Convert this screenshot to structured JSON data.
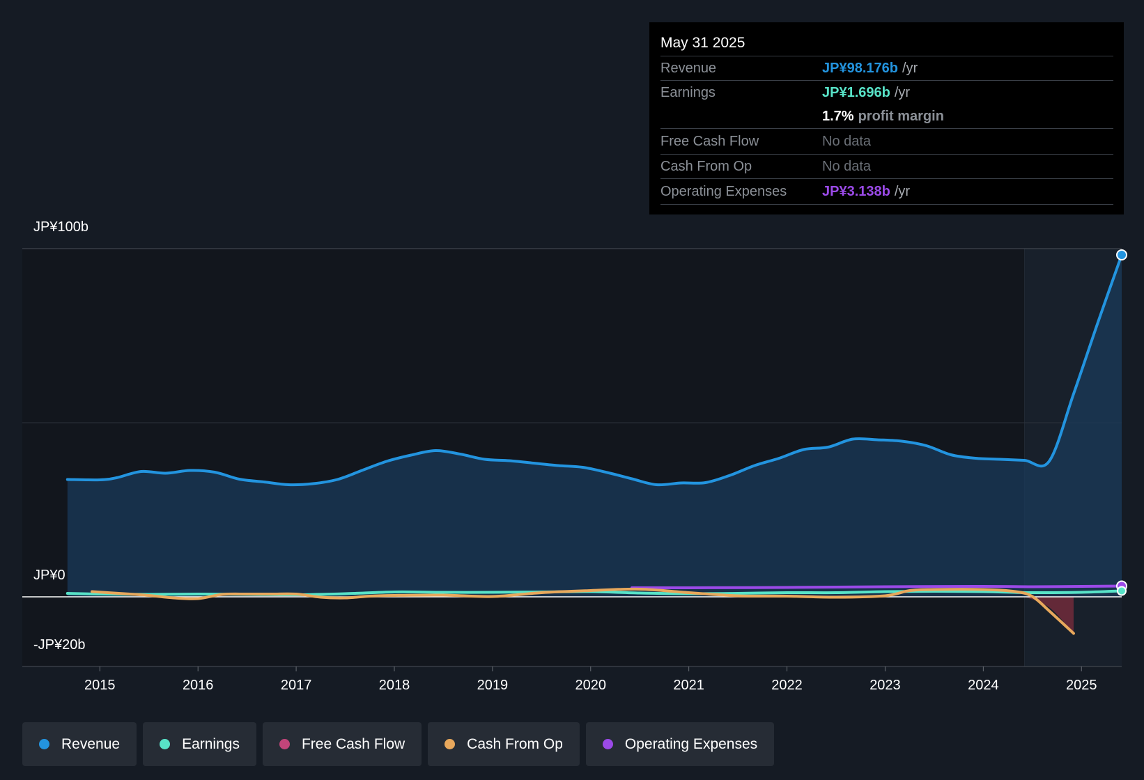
{
  "tooltip": {
    "date": "May 31 2025",
    "rows": {
      "revenue": {
        "label": "Revenue",
        "value": "JP¥98.176b",
        "unit": "/yr"
      },
      "earnings": {
        "label": "Earnings",
        "value": "JP¥1.696b",
        "unit": "/yr"
      },
      "margin": {
        "value": "1.7%",
        "unit": "profit margin"
      },
      "fcf": {
        "label": "Free Cash Flow",
        "value": "No data"
      },
      "cfo": {
        "label": "Cash From Op",
        "value": "No data"
      },
      "opex": {
        "label": "Operating Expenses",
        "value": "JP¥3.138b",
        "unit": "/yr"
      }
    }
  },
  "legend": [
    {
      "label": "Revenue",
      "color": "#2394df"
    },
    {
      "label": "Earnings",
      "color": "#58e3c8"
    },
    {
      "label": "Free Cash Flow",
      "color": "#c2457a"
    },
    {
      "label": "Cash From Op",
      "color": "#e8a85c"
    },
    {
      "label": "Operating Expenses",
      "color": "#9b4ae8"
    }
  ],
  "chart_data": {
    "type": "line",
    "y_tick_labels": [
      "JP¥100b",
      "JP¥0",
      "-JP¥20b"
    ],
    "ylim": [
      -20,
      100
    ],
    "x_tick_labels": [
      "2015",
      "2016",
      "2017",
      "2018",
      "2019",
      "2020",
      "2021",
      "2022",
      "2023",
      "2024",
      "2025"
    ],
    "xlim": [
      2014.21,
      2025.41
    ],
    "forecast_shade_start": 2024.42,
    "grid": true,
    "series": [
      {
        "name": "Revenue",
        "color": "#2394df",
        "area": true,
        "end_marker": true,
        "x": [
          2014.67,
          2015.0,
          2015.17,
          2015.42,
          2015.67,
          2015.92,
          2016.17,
          2016.42,
          2016.67,
          2016.92,
          2017.17,
          2017.42,
          2017.67,
          2017.92,
          2018.17,
          2018.42,
          2018.67,
          2018.92,
          2019.17,
          2019.42,
          2019.67,
          2019.92,
          2020.17,
          2020.42,
          2020.67,
          2020.92,
          2021.17,
          2021.42,
          2021.67,
          2021.92,
          2022.17,
          2022.42,
          2022.67,
          2022.92,
          2023.17,
          2023.42,
          2023.67,
          2023.92,
          2024.17,
          2024.42,
          2024.67,
          2024.92,
          2025.17,
          2025.41
        ],
        "values": [
          33.7,
          33.6,
          34.2,
          36.0,
          35.5,
          36.3,
          35.8,
          33.8,
          33.0,
          32.2,
          32.5,
          33.7,
          36.3,
          38.9,
          40.7,
          42.0,
          41.0,
          39.5,
          39.1,
          38.4,
          37.7,
          37.2,
          35.7,
          33.9,
          32.2,
          32.7,
          32.8,
          34.9,
          37.7,
          39.8,
          42.3,
          43.0,
          45.3,
          45.1,
          44.7,
          43.4,
          40.8,
          39.8,
          39.5,
          39.2,
          38.9,
          58.3,
          79.0,
          98.2
        ]
      },
      {
        "name": "Earnings",
        "color": "#58e3c8",
        "x": [
          2014.67,
          2015.0,
          2015.5,
          2016.0,
          2016.5,
          2017.0,
          2017.5,
          2018.0,
          2018.5,
          2019.0,
          2019.5,
          2020.0,
          2020.5,
          2021.0,
          2021.5,
          2022.0,
          2022.5,
          2023.0,
          2023.5,
          2024.0,
          2024.5,
          2025.0,
          2025.41
        ],
        "values": [
          1.0,
          0.8,
          0.7,
          0.8,
          0.7,
          0.6,
          0.9,
          1.4,
          1.3,
          1.3,
          1.4,
          1.5,
          1.1,
          0.9,
          1.0,
          1.2,
          1.2,
          1.5,
          1.6,
          1.5,
          1.2,
          1.3,
          1.7
        ]
      },
      {
        "name": "Free Cash Flow",
        "color": "#c2457a",
        "x": [
          2024.42,
          2024.67,
          2024.92
        ],
        "values": [
          0,
          -3.0,
          -10.5
        ]
      },
      {
        "name": "Cash From Op",
        "color": "#e8a85c",
        "x": [
          2014.92,
          2015.25,
          2015.5,
          2015.75,
          2016.0,
          2016.25,
          2016.5,
          2016.75,
          2017.0,
          2017.25,
          2017.5,
          2017.75,
          2018.0,
          2018.5,
          2019.0,
          2019.5,
          2020.0,
          2020.5,
          2021.0,
          2021.5,
          2022.0,
          2022.5,
          2023.0,
          2023.25,
          2023.5,
          2024.0,
          2024.33,
          2024.5,
          2024.67,
          2024.92
        ],
        "values": [
          1.5,
          0.9,
          0.4,
          -0.3,
          -0.5,
          0.7,
          0.8,
          0.8,
          0.8,
          -0.1,
          -0.3,
          0.2,
          0.4,
          0.5,
          0.1,
          1.2,
          1.8,
          2.2,
          1.2,
          0.3,
          0.2,
          -0.1,
          0.3,
          1.8,
          2.1,
          2.1,
          1.5,
          0.1,
          -4.0,
          -10.5
        ]
      },
      {
        "name": "Operating Expenses",
        "color": "#9b4ae8",
        "end_marker": true,
        "x": [
          2020.42,
          2021.0,
          2022.0,
          2023.0,
          2024.0,
          2024.5,
          2025.0,
          2025.41
        ],
        "values": [
          2.6,
          2.6,
          2.7,
          2.9,
          3.0,
          2.9,
          3.0,
          3.1
        ]
      }
    ]
  }
}
